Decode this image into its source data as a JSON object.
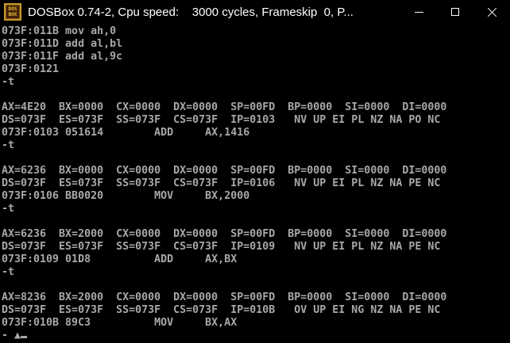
{
  "window": {
    "title": "DOSBox 0.74-2, Cpu speed:    3000 cycles, Frameskip  0, P...",
    "icon": {
      "line1": "DOS",
      "line2": "BOX"
    },
    "controls": {
      "minimize": "minimize-icon",
      "maximize": "maximize-icon",
      "close": "close-icon"
    }
  },
  "terminal": {
    "foreground": "#A8A8A8",
    "background": "#000000",
    "lines": [
      "073F:011B mov ah,0",
      "073F:011D add al,bl",
      "073F:011F add al,9c",
      "073F:0121",
      "-t",
      "",
      "AX=4E20  BX=0000  CX=0000  DX=0000  SP=00FD  BP=0000  SI=0000  DI=0000",
      "DS=073F  ES=073F  SS=073F  CS=073F  IP=0103   NV UP EI PL NZ NA PO NC",
      "073F:0103 051614        ADD     AX,1416",
      "-t",
      "",
      "AX=6236  BX=0000  CX=0000  DX=0000  SP=00FD  BP=0000  SI=0000  DI=0000",
      "DS=073F  ES=073F  SS=073F  CS=073F  IP=0106   NV UP EI PL NZ NA PE NC",
      "073F:0106 BB0020        MOV     BX,2000",
      "-t",
      "",
      "AX=6236  BX=2000  CX=0000  DX=0000  SP=00FD  BP=0000  SI=0000  DI=0000",
      "DS=073F  ES=073F  SS=073F  CS=073F  IP=0109   NV UP EI PL NZ NA PE NC",
      "073F:0109 01D8          ADD     AX,BX",
      "-t",
      "",
      "AX=8236  BX=2000  CX=0000  DX=0000  SP=00FD  BP=0000  SI=0000  DI=0000",
      "DS=073F  ES=073F  SS=073F  CS=073F  IP=010B   OV UP EI NG NZ NA PE NC",
      "073F:010B 89C3          MOV     BX,AX"
    ],
    "prompt": "- ▲"
  }
}
